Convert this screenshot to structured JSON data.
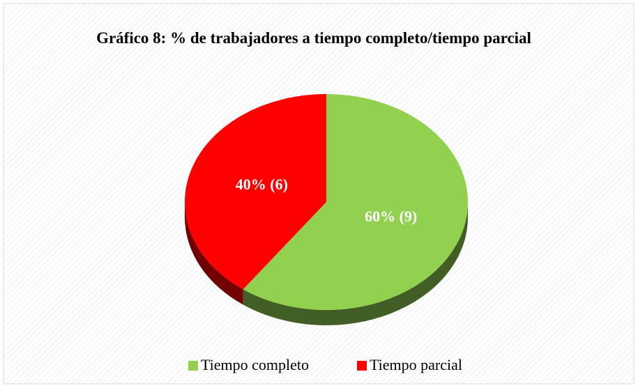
{
  "chart_data": {
    "type": "pie",
    "title": "Gráfico 8: % de trabajadores a tiempo completo/tiempo parcial",
    "categories": [
      "Tiempo completo",
      "Tiempo parcial"
    ],
    "values": [
      60,
      40
    ],
    "value_labels": [
      "60% (9)",
      "40% (6)"
    ],
    "colors": [
      "#92d050",
      "#ff0000"
    ],
    "legend": "bottom"
  }
}
